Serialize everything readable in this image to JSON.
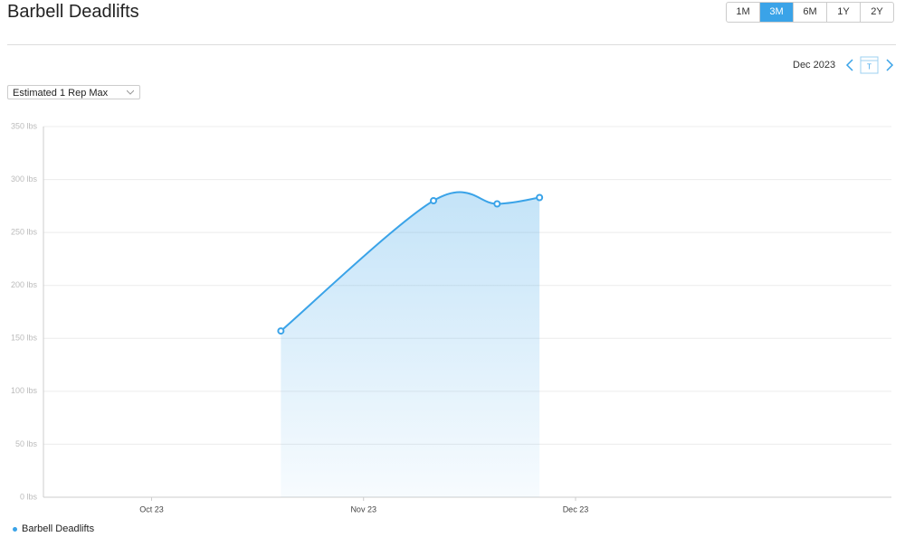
{
  "header": {
    "title": "Barbell Deadlifts",
    "ranges": [
      "1M",
      "3M",
      "6M",
      "1Y",
      "2Y"
    ],
    "active_range": 1
  },
  "period": {
    "label": "Dec 2023",
    "today": "T"
  },
  "metric_select": "Estimated 1 Rep Max",
  "chart_data": {
    "type": "line",
    "x": [
      10.61,
      11.33,
      11.63,
      11.83
    ],
    "series": [
      {
        "name": "Barbell Deadlifts",
        "color": "#3aa3e8",
        "values": [
          157,
          280,
          277,
          283
        ]
      }
    ],
    "xlim": [
      9.49,
      13.49
    ],
    "xticks": [
      {
        "value": 10,
        "label": "Oct 23"
      },
      {
        "value": 11,
        "label": "Nov 23"
      },
      {
        "value": 12,
        "label": "Dec 23"
      }
    ],
    "ylim": [
      0,
      350
    ],
    "yticks": [
      {
        "value": 0,
        "label": "0 lbs"
      },
      {
        "value": 50,
        "label": "50 lbs"
      },
      {
        "value": 100,
        "label": "100 lbs"
      },
      {
        "value": 150,
        "label": "150 lbs"
      },
      {
        "value": 200,
        "label": "200 lbs"
      },
      {
        "value": 250,
        "label": "250 lbs"
      },
      {
        "value": 300,
        "label": "300 lbs"
      },
      {
        "value": 350,
        "label": "350 lbs"
      }
    ],
    "grid": true,
    "area": true
  }
}
